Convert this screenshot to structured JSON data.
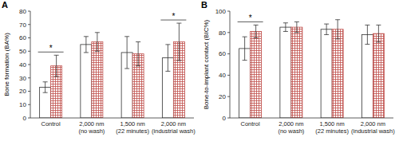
{
  "chart_data": [
    {
      "type": "bar",
      "title": "A",
      "y_label": "Bone formation (BA%)",
      "categories": [
        "Control",
        "2,000 nm\n(no wash)",
        "1,500 nm\n(22 minutes)",
        "2,000 nm\n(industrial wash)"
      ],
      "series": [
        {
          "color": "#ffffff",
          "values": [
            23,
            55,
            49,
            45
          ],
          "errors": [
            4,
            6,
            12,
            10
          ]
        },
        {
          "color": "#c0504d",
          "values": [
            39,
            57,
            48,
            57
          ],
          "errors": [
            8,
            7,
            9,
            14
          ]
        }
      ],
      "ylim": [
        0,
        80
      ],
      "yticks": [
        0,
        10,
        20,
        30,
        40,
        50,
        60,
        70,
        80
      ],
      "grid": false,
      "annotations": [
        {
          "text": "*",
          "category": 0
        },
        {
          "text": "*",
          "category": 3
        }
      ]
    },
    {
      "type": "bar",
      "title": "B",
      "y_label": "Bone-to-implant contact (BIC%)",
      "categories": [
        "Control",
        "2,000 nm\n(no wash)",
        "1,500 nm\n(22 minutes)",
        "2,000 nm\n(industrial wash)"
      ],
      "series": [
        {
          "color": "#ffffff",
          "values": [
            65,
            85,
            83,
            78
          ],
          "errors": [
            11,
            4,
            5,
            9
          ]
        },
        {
          "color": "#c0504d",
          "values": [
            81,
            85,
            83,
            79
          ],
          "errors": [
            6,
            5,
            9,
            8
          ]
        }
      ],
      "ylim": [
        0,
        100
      ],
      "yticks": [
        0,
        20,
        40,
        60,
        80,
        100
      ],
      "grid": false,
      "annotations": [
        {
          "text": "*",
          "category": 0
        }
      ]
    }
  ]
}
